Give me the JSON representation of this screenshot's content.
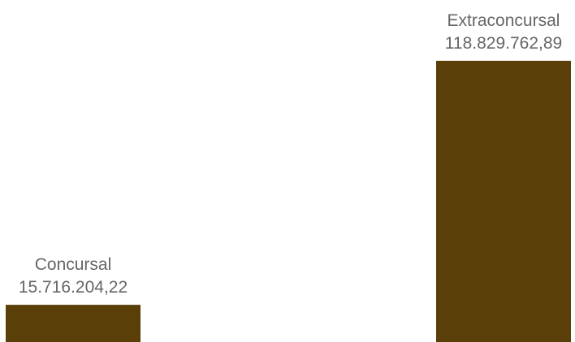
{
  "chart_data": {
    "type": "bar",
    "categories": [
      "Concursal",
      "Extraconcursal"
    ],
    "values": [
      15716204.22,
      118829762.89
    ],
    "value_labels": [
      "15.716.204,22",
      "118.829.762,89"
    ],
    "bar_color": "#5a3f08",
    "label_color": "#666666",
    "ylim": [
      0,
      118829762.89
    ],
    "grid": false,
    "axes_visible": false,
    "legend": "none"
  }
}
